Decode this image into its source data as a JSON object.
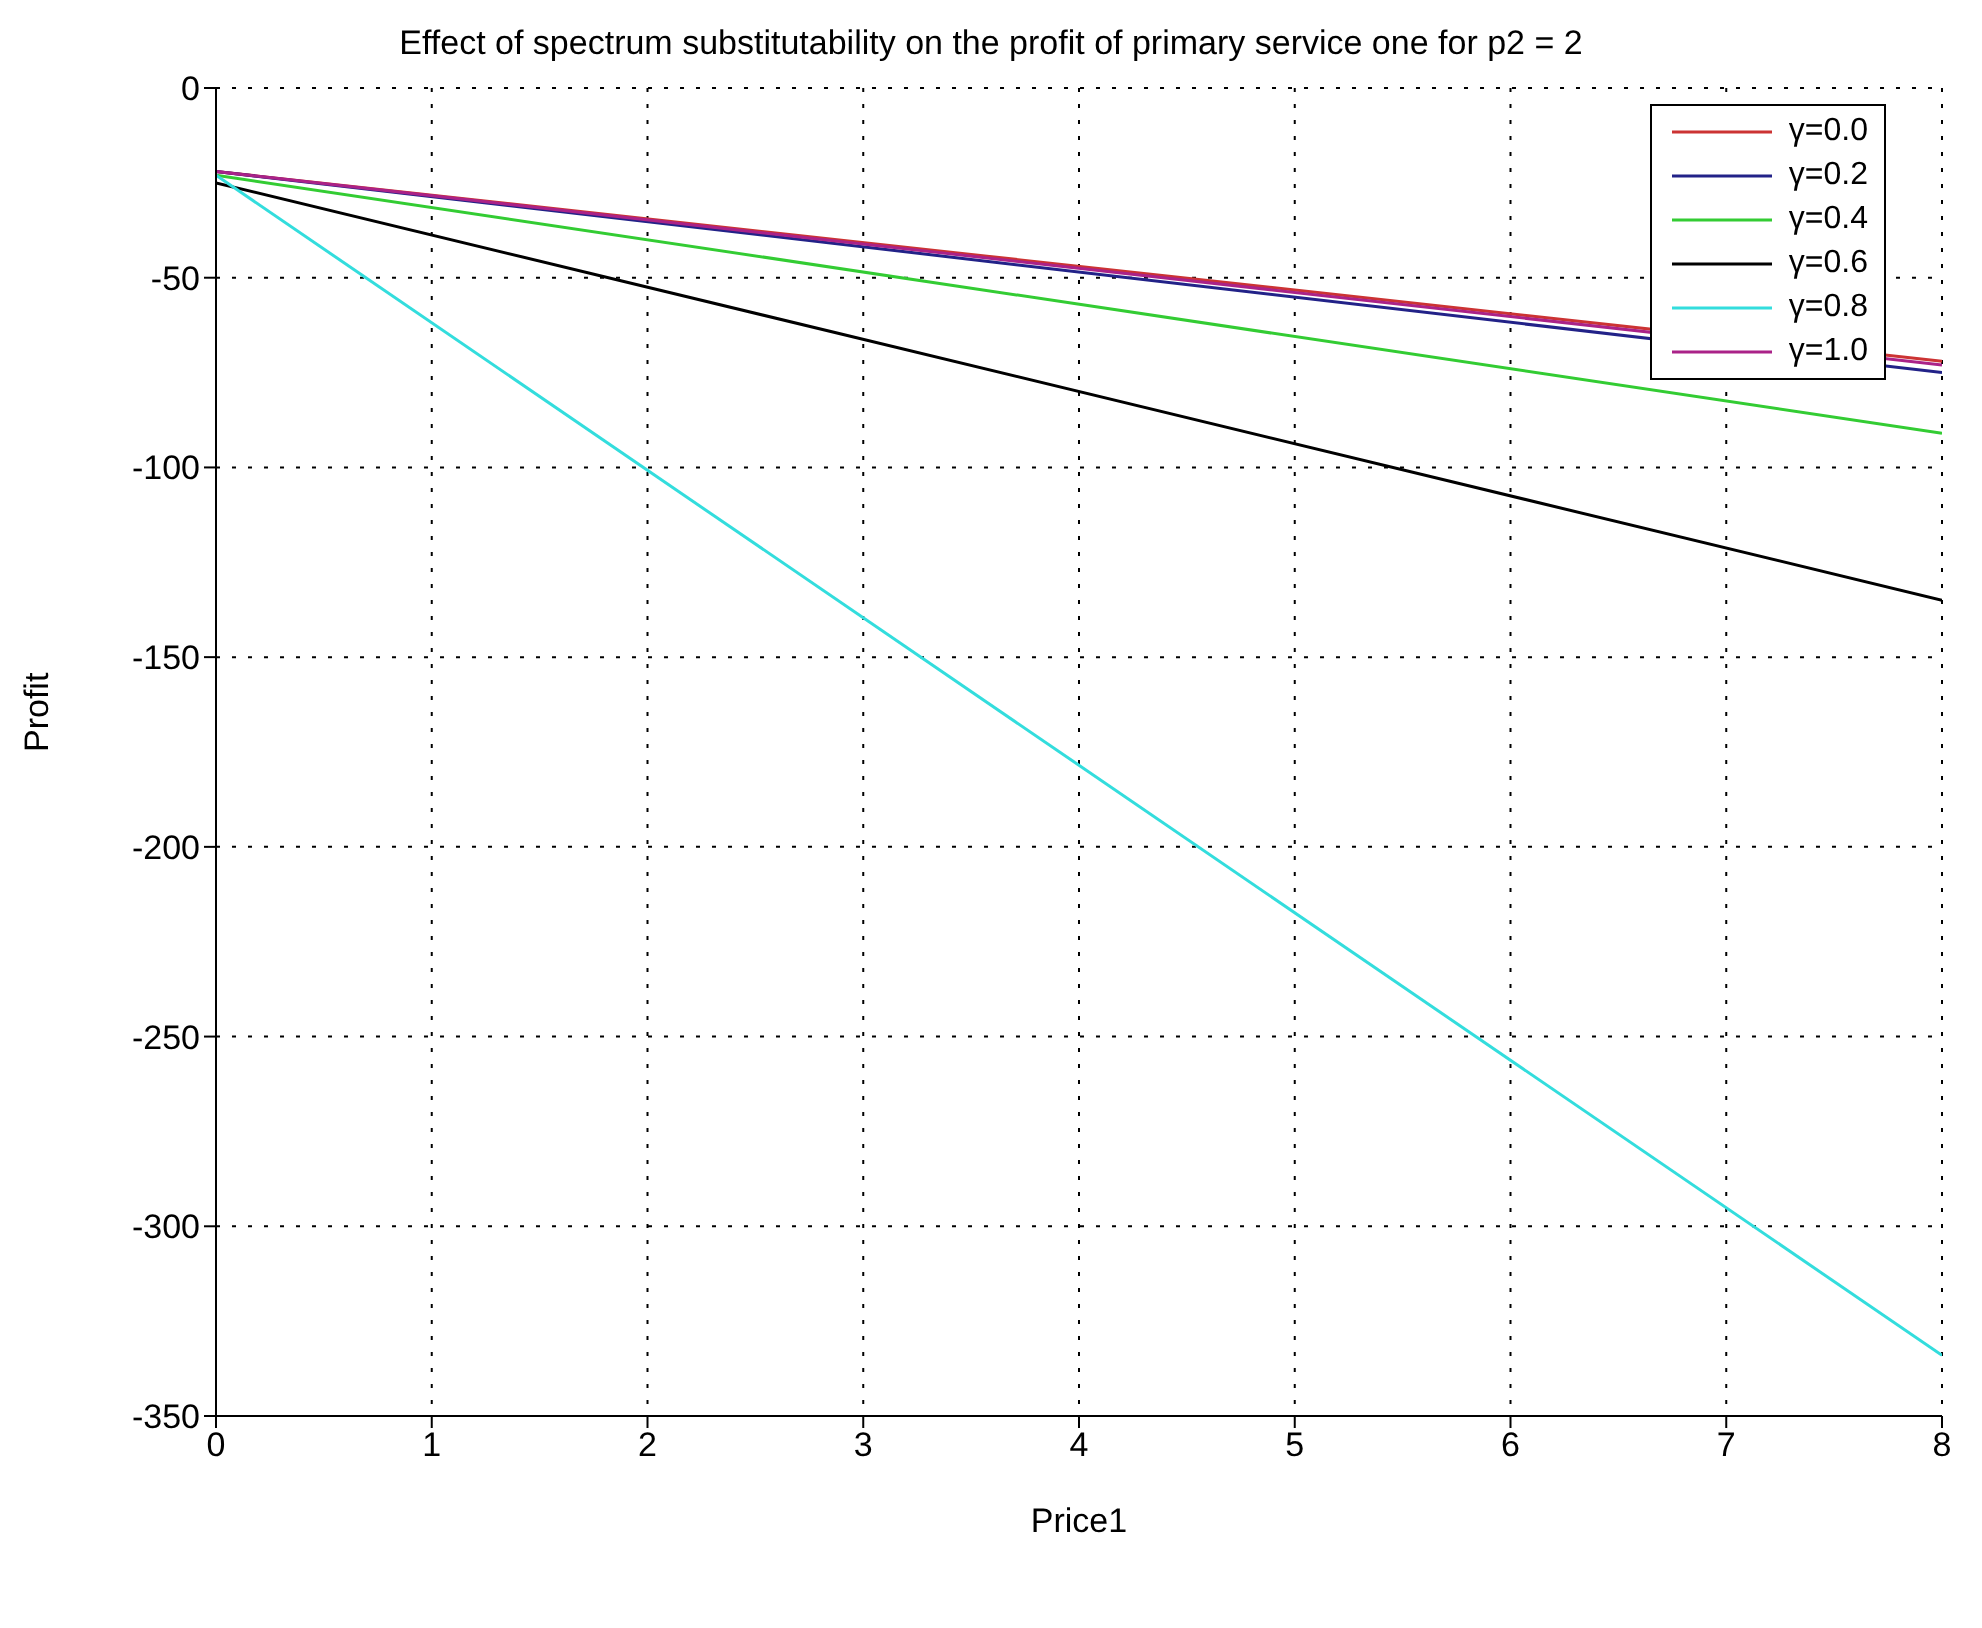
{
  "chart_data": {
    "type": "line",
    "title": "Effect of spectrum substitutability on the profit of primary service one for p2 = 2",
    "xlabel": "Price1",
    "ylabel": "Profit",
    "x": [
      0,
      8
    ],
    "series": [
      {
        "name": "γ=0.0",
        "color": "#cc3333",
        "values": [
          -22,
          -72
        ]
      },
      {
        "name": "γ=0.2",
        "color": "#222288",
        "values": [
          -22,
          -75
        ]
      },
      {
        "name": "γ=0.4",
        "color": "#33cc33",
        "values": [
          -23,
          -91
        ]
      },
      {
        "name": "γ=0.6",
        "color": "#000000",
        "values": [
          -25,
          -135
        ]
      },
      {
        "name": "γ=0.8",
        "color": "#33dddd",
        "values": [
          -23,
          -334
        ]
      },
      {
        "name": "γ=1.0",
        "color": "#aa2288",
        "values": [
          -22,
          -73
        ]
      }
    ],
    "xlim": [
      0,
      8
    ],
    "xticks": [
      0,
      1,
      2,
      3,
      4,
      5,
      6,
      7,
      8
    ],
    "ylim": [
      -350,
      0
    ],
    "yticks": [
      -350,
      -300,
      -250,
      -200,
      -150,
      -100,
      -50,
      0
    ],
    "grid": true,
    "legend": "top right",
    "marker": "none",
    "line_style": "solid"
  }
}
